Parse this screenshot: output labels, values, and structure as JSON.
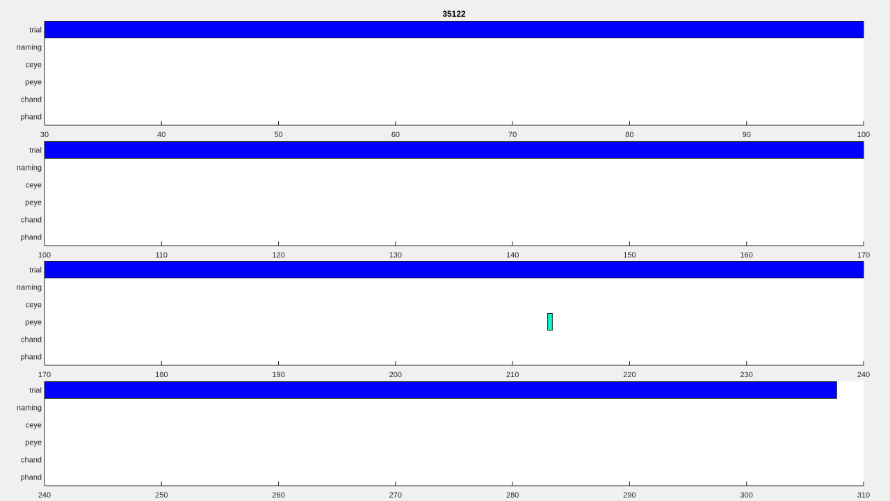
{
  "chart_data": {
    "type": "bar",
    "title": "35122",
    "rows": [
      "trial",
      "naming",
      "ceye",
      "peye",
      "chand",
      "phand"
    ],
    "colors": {
      "trial": "#0000ff",
      "peye": "#00ffcc"
    },
    "panels": [
      {
        "xlim": [
          30,
          100
        ],
        "xticks": [
          30,
          40,
          50,
          60,
          70,
          80,
          90,
          100
        ],
        "events": [
          {
            "row": "trial",
            "start": 30,
            "end": 100
          }
        ]
      },
      {
        "xlim": [
          100,
          170
        ],
        "xticks": [
          100,
          110,
          120,
          130,
          140,
          150,
          160,
          170
        ],
        "events": [
          {
            "row": "trial",
            "start": 100,
            "end": 170
          }
        ]
      },
      {
        "xlim": [
          170,
          240
        ],
        "xticks": [
          170,
          180,
          190,
          200,
          210,
          220,
          230,
          240
        ],
        "events": [
          {
            "row": "trial",
            "start": 170,
            "end": 240
          },
          {
            "row": "peye",
            "start": 213.0,
            "end": 213.4
          }
        ]
      },
      {
        "xlim": [
          240,
          310
        ],
        "xticks": [
          240,
          250,
          260,
          270,
          280,
          290,
          300,
          310
        ],
        "events": [
          {
            "row": "trial",
            "start": 240,
            "end": 307.7
          }
        ]
      }
    ]
  }
}
